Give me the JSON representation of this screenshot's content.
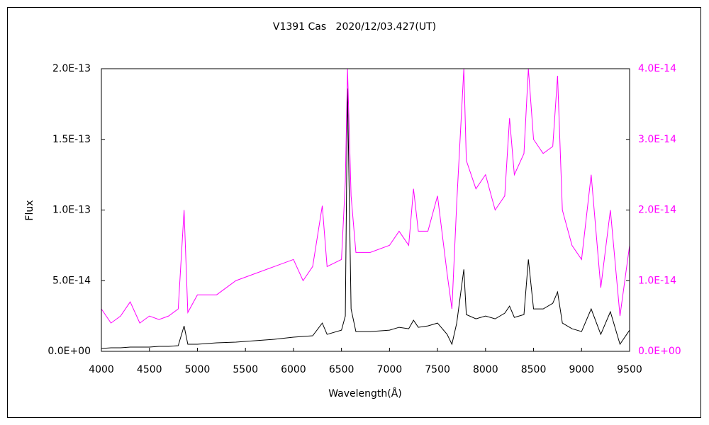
{
  "chart_data": {
    "type": "line",
    "title": "V1391 Cas   2020/12/03.427(UT)",
    "x_label": "Wavelength(Å)",
    "y_label": "Flux",
    "x": [
      4000,
      4100,
      4200,
      4300,
      4400,
      4500,
      4600,
      4700,
      4800,
      4861,
      4900,
      5000,
      5200,
      5400,
      5600,
      5800,
      6000,
      6100,
      6200,
      6300,
      6350,
      6500,
      6540,
      6563,
      6600,
      6650,
      6800,
      7000,
      7100,
      7200,
      7250,
      7300,
      7400,
      7500,
      7600,
      7650,
      7700,
      7774,
      7800,
      7900,
      8000,
      8100,
      8200,
      8250,
      8300,
      8400,
      8446,
      8500,
      8600,
      8700,
      8750,
      8800,
      8900,
      9000,
      9100,
      9200,
      9300,
      9400,
      9500
    ],
    "series": [
      {
        "color": "#000000",
        "axis": "y",
        "values": [
          2e-15,
          2.5e-15,
          2.5e-15,
          3e-15,
          3e-15,
          3e-15,
          3.5e-15,
          3.5e-15,
          4e-15,
          1.8e-14,
          5e-15,
          5e-15,
          6e-15,
          6.5e-15,
          7.5e-15,
          8.5e-15,
          1e-14,
          1.05e-14,
          1.1e-14,
          2e-14,
          1.2e-14,
          1.5e-14,
          2.5e-14,
          1.86e-13,
          3e-14,
          1.4e-14,
          1.4e-14,
          1.5e-14,
          1.7e-14,
          1.6e-14,
          2.2e-14,
          1.7e-14,
          1.8e-14,
          2e-14,
          1.2e-14,
          5e-15,
          2e-14,
          5.8e-14,
          2.6e-14,
          2.3e-14,
          2.5e-14,
          2.3e-14,
          2.7e-14,
          3.2e-14,
          2.4e-14,
          2.6e-14,
          6.5e-14,
          3e-14,
          3e-14,
          3.4e-14,
          4.2e-14,
          2e-14,
          1.6e-14,
          1.4e-14,
          3e-14,
          1.2e-14,
          2.8e-14,
          5e-15,
          1.5e-14
        ]
      },
      {
        "color": "#ff00ff",
        "axis": "y2",
        "values": [
          6e-15,
          4e-15,
          5e-15,
          7e-15,
          4e-15,
          5e-15,
          4.5e-15,
          5e-15,
          6e-15,
          2e-14,
          5.5e-15,
          8e-15,
          8e-15,
          1e-14,
          1.1e-14,
          1.2e-14,
          1.3e-14,
          1e-14,
          1.2e-14,
          2.06e-14,
          1.2e-14,
          1.3e-14,
          2.4e-14,
          4e-14,
          2.2e-14,
          1.4e-14,
          1.4e-14,
          1.5e-14,
          1.7e-14,
          1.5e-14,
          2.3e-14,
          1.7e-14,
          1.7e-14,
          2.2e-14,
          1.1e-14,
          6e-15,
          2.1e-14,
          4e-14,
          2.7e-14,
          2.3e-14,
          2.5e-14,
          2e-14,
          2.2e-14,
          3.3e-14,
          2.5e-14,
          2.8e-14,
          4e-14,
          3e-14,
          2.8e-14,
          2.9e-14,
          3.9e-14,
          2e-14,
          1.5e-14,
          1.3e-14,
          2.5e-14,
          9e-15,
          2e-14,
          5e-15,
          1.5e-14
        ]
      }
    ],
    "xlim": [
      4000,
      9500
    ],
    "xticks": [
      4000,
      4500,
      5000,
      5500,
      6000,
      6500,
      7000,
      7500,
      8000,
      8500,
      9000,
      9500
    ],
    "ylim": [
      0,
      2e-13
    ],
    "yticks": [
      {
        "value": 0,
        "label": "0.0E+00"
      },
      {
        "value": 5e-14,
        "label": "5.0E-14"
      },
      {
        "value": 1e-13,
        "label": "1.0E-13"
      },
      {
        "value": 1.5e-13,
        "label": "1.5E-13"
      },
      {
        "value": 2e-13,
        "label": "2.0E-13"
      }
    ],
    "y2lim": [
      0,
      4e-14
    ],
    "y2ticks": [
      {
        "value": 0,
        "label": "0.0E+00"
      },
      {
        "value": 1e-14,
        "label": "1.0E-14"
      },
      {
        "value": 2e-14,
        "label": "2.0E-14"
      },
      {
        "value": 3e-14,
        "label": "3.0E-14"
      },
      {
        "value": 4e-14,
        "label": "4.0E-14"
      }
    ],
    "grid": false
  }
}
